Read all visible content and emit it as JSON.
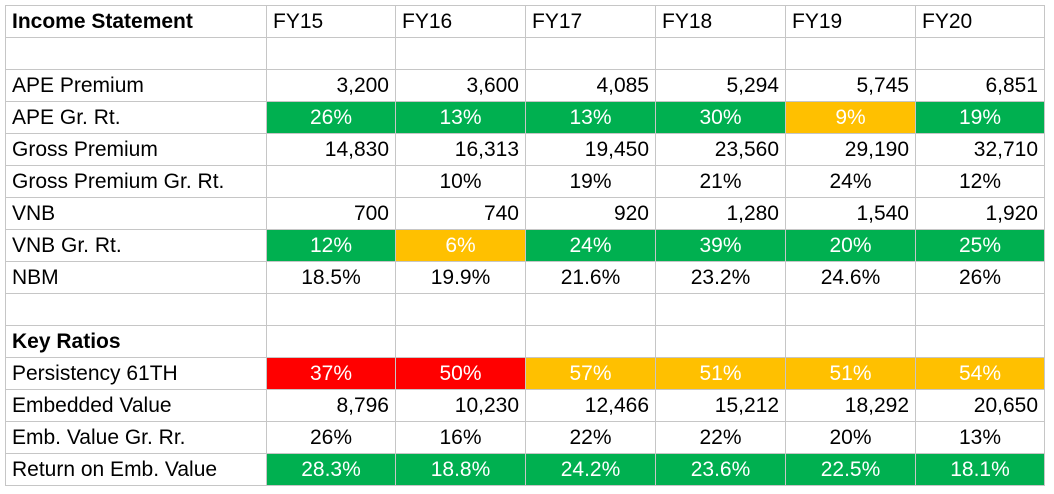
{
  "colors": {
    "green": "#00b050",
    "orange": "#ffc000",
    "red": "#ff0000"
  },
  "income_statement": {
    "title": "Income Statement",
    "years": [
      "FY15",
      "FY16",
      "FY17",
      "FY18",
      "FY19",
      "FY20"
    ],
    "rows": [
      {
        "label": "APE Premium",
        "cells": [
          {
            "v": "3,200",
            "s": "num"
          },
          {
            "v": "3,600",
            "s": "num"
          },
          {
            "v": "4,085",
            "s": "num"
          },
          {
            "v": "5,294",
            "s": "num"
          },
          {
            "v": "5,745",
            "s": "num"
          },
          {
            "v": "6,851",
            "s": "num"
          }
        ]
      },
      {
        "label": "APE Gr. Rt.",
        "cells": [
          {
            "v": "26%",
            "s": "green"
          },
          {
            "v": "13%",
            "s": "green"
          },
          {
            "v": "13%",
            "s": "green"
          },
          {
            "v": "30%",
            "s": "green"
          },
          {
            "v": "9%",
            "s": "orange"
          },
          {
            "v": "19%",
            "s": "green"
          }
        ]
      },
      {
        "label": "Gross Premium",
        "cells": [
          {
            "v": "14,830",
            "s": "num"
          },
          {
            "v": "16,313",
            "s": "num"
          },
          {
            "v": "19,450",
            "s": "num"
          },
          {
            "v": "23,560",
            "s": "num"
          },
          {
            "v": "29,190",
            "s": "num"
          },
          {
            "v": "32,710",
            "s": "num"
          }
        ]
      },
      {
        "label": "Gross Premium Gr. Rt.",
        "cells": [
          {
            "v": "",
            "s": "ctr"
          },
          {
            "v": "10%",
            "s": "ctr"
          },
          {
            "v": "19%",
            "s": "ctr"
          },
          {
            "v": "21%",
            "s": "ctr"
          },
          {
            "v": "24%",
            "s": "ctr"
          },
          {
            "v": "12%",
            "s": "ctr"
          }
        ]
      },
      {
        "label": "VNB",
        "cells": [
          {
            "v": "700",
            "s": "num"
          },
          {
            "v": "740",
            "s": "num"
          },
          {
            "v": "920",
            "s": "num"
          },
          {
            "v": "1,280",
            "s": "num"
          },
          {
            "v": "1,540",
            "s": "num"
          },
          {
            "v": "1,920",
            "s": "num"
          }
        ]
      },
      {
        "label": "VNB Gr. Rt.",
        "cells": [
          {
            "v": "12%",
            "s": "green"
          },
          {
            "v": "6%",
            "s": "orange"
          },
          {
            "v": "24%",
            "s": "green"
          },
          {
            "v": "39%",
            "s": "green"
          },
          {
            "v": "20%",
            "s": "green"
          },
          {
            "v": "25%",
            "s": "green"
          }
        ]
      },
      {
        "label": "NBM",
        "cells": [
          {
            "v": "18.5%",
            "s": "ctr"
          },
          {
            "v": "19.9%",
            "s": "ctr"
          },
          {
            "v": "21.6%",
            "s": "ctr"
          },
          {
            "v": "23.2%",
            "s": "ctr"
          },
          {
            "v": "24.6%",
            "s": "ctr"
          },
          {
            "v": "26%",
            "s": "ctr"
          }
        ]
      }
    ]
  },
  "key_ratios": {
    "title": "Key Ratios",
    "rows": [
      {
        "label": "Persistency 61TH",
        "cells": [
          {
            "v": "37%",
            "s": "red"
          },
          {
            "v": "50%",
            "s": "red"
          },
          {
            "v": "57%",
            "s": "orange"
          },
          {
            "v": "51%",
            "s": "orange"
          },
          {
            "v": "51%",
            "s": "orange"
          },
          {
            "v": "54%",
            "s": "orange"
          }
        ]
      },
      {
        "label": "Embedded Value",
        "cells": [
          {
            "v": "8,796",
            "s": "num"
          },
          {
            "v": "10,230",
            "s": "num"
          },
          {
            "v": "12,466",
            "s": "num"
          },
          {
            "v": "15,212",
            "s": "num"
          },
          {
            "v": "18,292",
            "s": "num"
          },
          {
            "v": "20,650",
            "s": "num"
          }
        ]
      },
      {
        "label": "Emb. Value Gr. Rr.",
        "cells": [
          {
            "v": "26%",
            "s": "ctr"
          },
          {
            "v": "16%",
            "s": "ctr"
          },
          {
            "v": "22%",
            "s": "ctr"
          },
          {
            "v": "22%",
            "s": "ctr"
          },
          {
            "v": "20%",
            "s": "ctr"
          },
          {
            "v": "13%",
            "s": "ctr"
          }
        ]
      },
      {
        "label": "Return on Emb. Value",
        "cells": [
          {
            "v": "28.3%",
            "s": "green"
          },
          {
            "v": "18.8%",
            "s": "green"
          },
          {
            "v": "24.2%",
            "s": "green"
          },
          {
            "v": "23.6%",
            "s": "green"
          },
          {
            "v": "22.5%",
            "s": "green"
          },
          {
            "v": "18.1%",
            "s": "green"
          }
        ]
      }
    ]
  }
}
